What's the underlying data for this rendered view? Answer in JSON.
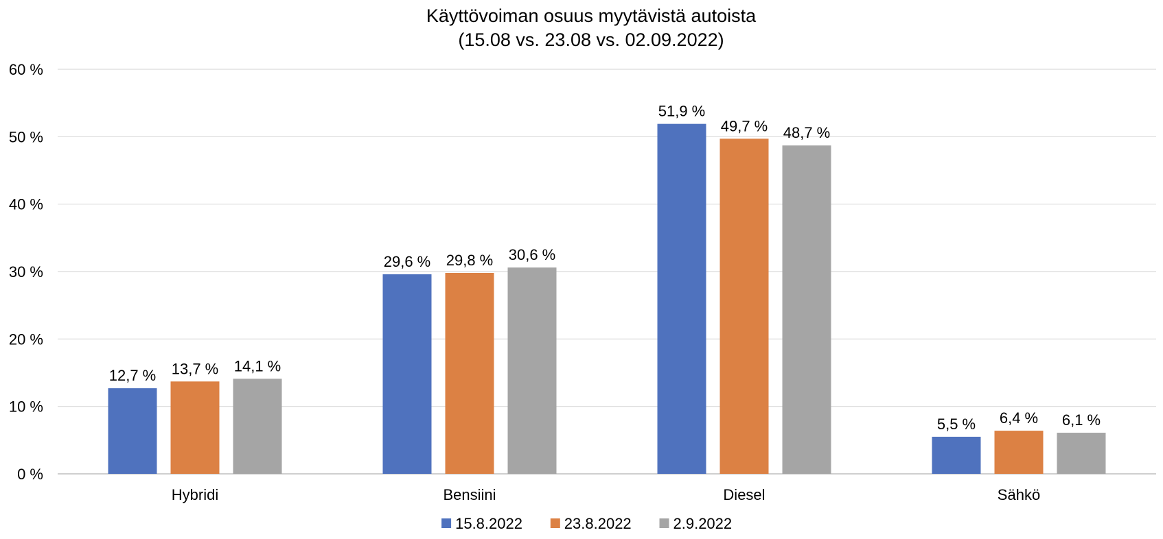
{
  "chart_data": {
    "type": "bar",
    "title": "Käyttövoiman osuus myytävistä autoista",
    "subtitle": "(15.08 vs. 23.08 vs. 02.09.2022)",
    "categories": [
      "Hybridi",
      "Bensiini",
      "Diesel",
      "Sähkö"
    ],
    "series": [
      {
        "name": "15.8.2022",
        "color": "#4f72be",
        "values": [
          12.7,
          29.6,
          51.9,
          5.5
        ],
        "labels": [
          "12,7 %",
          "29,6 %",
          "51,9 %",
          "5,5 %"
        ]
      },
      {
        "name": "23.8.2022",
        "color": "#dc8144",
        "values": [
          13.7,
          29.8,
          49.7,
          6.4
        ],
        "labels": [
          "13,7 %",
          "29,8 %",
          "49,7 %",
          "6,4 %"
        ]
      },
      {
        "name": "2.9.2022",
        "color": "#a5a5a5",
        "values": [
          14.1,
          30.6,
          48.7,
          6.1
        ],
        "labels": [
          "14,1 %",
          "30,6 %",
          "48,7 %",
          "6,1 %"
        ]
      }
    ],
    "yticks": [
      0,
      10,
      20,
      30,
      40,
      50,
      60
    ],
    "ytick_labels": [
      "0 %",
      "10 %",
      "20 %",
      "30 %",
      "40 %",
      "50 %",
      "60 %"
    ],
    "ylim": [
      0,
      60
    ],
    "xlabel": "",
    "ylabel": "",
    "grid": true,
    "legend_position": "bottom"
  }
}
